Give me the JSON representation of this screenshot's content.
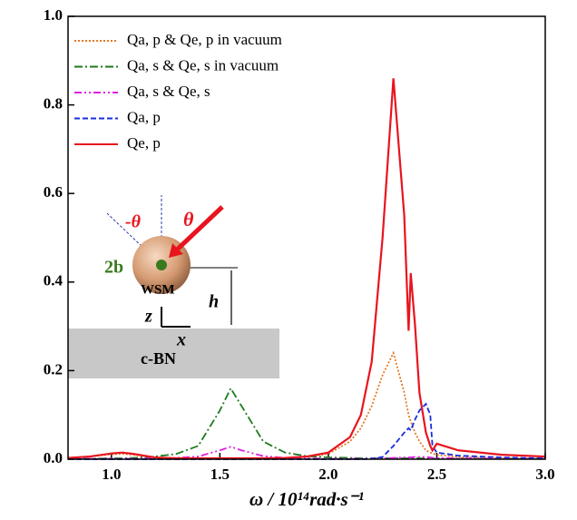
{
  "chart_data": {
    "type": "line",
    "x_label": "ω / 10¹⁴rad·s⁻¹",
    "xlim": [
      0.8,
      3.0
    ],
    "xticks": [
      {
        "value": 1,
        "label": "1.0"
      },
      1.5,
      {
        "value": 2,
        "label": "2.0"
      },
      2.5,
      {
        "value": 3,
        "label": "3.0"
      }
    ],
    "ylim": [
      0,
      1
    ],
    "yticks": [
      {
        "value": 0,
        "label": "0.0"
      },
      0.2,
      0.4,
      0.6,
      0.8,
      {
        "value": 1,
        "label": "1.0"
      }
    ],
    "legend": "upper left",
    "x": [
      0.8,
      0.9,
      1.0,
      1.05,
      1.1,
      1.2,
      1.3,
      1.4,
      1.5,
      1.55,
      1.6,
      1.7,
      1.8,
      1.9,
      2.0,
      2.1,
      2.15,
      2.2,
      2.25,
      2.3,
      2.35,
      2.37,
      2.38,
      2.4,
      2.42,
      2.45,
      2.47,
      2.48,
      2.5,
      2.6,
      2.8,
      3.0
    ],
    "series": [
      {
        "name": "Qa, p & Qe, p in vacuum",
        "color": "#e87722",
        "dash": "2,2",
        "values": [
          0.003,
          0.006,
          0.011,
          0.012,
          0.01,
          0.004,
          0.002,
          0.002,
          0.002,
          0.002,
          0.002,
          0.002,
          0.002,
          0.004,
          0.012,
          0.04,
          0.07,
          0.12,
          0.19,
          0.24,
          0.15,
          0.1,
          0.085,
          0.06,
          0.04,
          0.02,
          0.015,
          0.013,
          0.01,
          0.005,
          0.002,
          0.001
        ]
      },
      {
        "name": "Qa, s & Qe, s in vacuum",
        "color": "#1e7a1e",
        "dash": "9,3,2,3",
        "values": [
          0.001,
          0.001,
          0.002,
          0.002,
          0.003,
          0.006,
          0.012,
          0.03,
          0.11,
          0.16,
          0.12,
          0.04,
          0.015,
          0.007,
          0.004,
          0.003,
          0.002,
          0.002,
          0.002,
          0.002,
          0.002,
          0.002,
          0.002,
          0.002,
          0.002,
          0.001,
          0.001,
          0.001,
          0.001,
          0.001,
          0.001,
          0.001
        ]
      },
      {
        "name": "Qa, s & Qe, s",
        "color": "#e020e0",
        "dash": "8,3,2,3,2,3",
        "values": [
          0.001,
          0.001,
          0.001,
          0.001,
          0.001,
          0.002,
          0.003,
          0.006,
          0.02,
          0.028,
          0.02,
          0.007,
          0.003,
          0.002,
          0.001,
          0.001,
          0.001,
          0.001,
          0.002,
          0.003,
          0.004,
          0.004,
          0.004,
          0.005,
          0.005,
          0.005,
          0.004,
          0.003,
          0.003,
          0.002,
          0.001,
          0.001
        ]
      },
      {
        "name": "Qa, p",
        "color": "#1a2ee0",
        "dash": "6,3",
        "values": [
          0,
          0,
          0,
          0,
          0,
          0,
          0,
          0,
          0,
          0,
          0,
          0,
          0,
          0,
          0,
          0,
          0,
          0.001,
          0.005,
          0.03,
          0.06,
          0.07,
          0.065,
          0.09,
          0.11,
          0.125,
          0.1,
          0.03,
          0.015,
          0.008,
          0.004,
          0.002
        ]
      },
      {
        "name": "Qe, p",
        "color": "#e8141e",
        "dash": "",
        "values": [
          0.003,
          0.006,
          0.013,
          0.015,
          0.012,
          0.004,
          0.002,
          0.002,
          0.002,
          0.002,
          0.002,
          0.002,
          0.003,
          0.006,
          0.015,
          0.05,
          0.1,
          0.22,
          0.5,
          0.86,
          0.55,
          0.29,
          0.42,
          0.3,
          0.15,
          0.06,
          0.03,
          0.02,
          0.035,
          0.02,
          0.01,
          0.006
        ]
      }
    ],
    "annotations": [
      "-θ",
      "θ",
      "2b",
      "WSM",
      "h",
      "z",
      "x",
      "c-BN"
    ]
  }
}
